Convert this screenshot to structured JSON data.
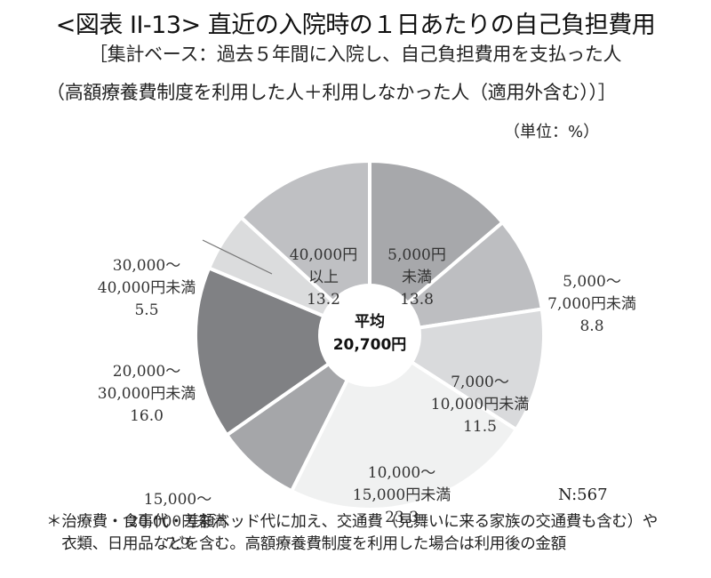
{
  "header": {
    "title": "<図表 II-13> 直近の入院時の１日あたりの自己負担費用",
    "subtitle_line1": "［集計ベース：過去５年間に入院し、自己負担費用を支払った人",
    "subtitle_line2": "（高額療養費制度を利用した人＋利用しなかった人（適用外含む））］",
    "unit": "（単位：%）"
  },
  "center": {
    "line1": "平均",
    "line2": "20,700円"
  },
  "sample": "N:567",
  "footnote": {
    "line1": "＊治療費・食事代・差額ベッド代に加え、交通費（見舞いに来る家族の交通費も含む）や",
    "line2": "　衣類、日用品などを含む。高額療養費制度を利用した場合は利用後の金額"
  },
  "slices": [
    {
      "label_l1": "5,000円",
      "label_l2": "未満",
      "value_text": "13.8",
      "color": "#a7a8ab"
    },
    {
      "label_l1": "5,000～",
      "label_l2": "7,000円未満",
      "value_text": "8.8",
      "color": "#bdbec1"
    },
    {
      "label_l1": "7,000～",
      "label_l2": "10,000円未満",
      "value_text": "11.5",
      "color": "#d9dadc"
    },
    {
      "label_l1": "10,000～",
      "label_l2": "15,000円未満",
      "value_text": "23.3",
      "color": "#f0f1f1"
    },
    {
      "label_l1": "15,000～",
      "label_l2": "20,000円未満",
      "value_text": "7.9",
      "color": "#a5a6a9"
    },
    {
      "label_l1": "20,000～",
      "label_l2": "30,000円未満",
      "value_text": "16.0",
      "color": "#808184"
    },
    {
      "label_l1": "30,000～",
      "label_l2": "40,000円未満",
      "value_text": "5.5",
      "color": "#dbdcdd"
    },
    {
      "label_l1": "40,000円",
      "label_l2": "以上",
      "value_text": "13.2",
      "color": "#bfc0c3"
    }
  ],
  "chart_data": {
    "type": "pie",
    "variant": "donut",
    "title": "<図表 II-13> 直近の入院時の１日あたりの自己負担費用",
    "subtitle": "［集計ベース：過去５年間に入院し、自己負担費用を支払った人（高額療養費制度を利用した人＋利用しなかった人（適用外含む））］",
    "unit": "%",
    "categories": [
      "5,000円未満",
      "5,000～7,000円未満",
      "7,000～10,000円未満",
      "10,000～15,000円未満",
      "15,000～20,000円未満",
      "20,000～30,000円未満",
      "30,000～40,000円未満",
      "40,000円以上"
    ],
    "values": [
      13.8,
      8.8,
      11.5,
      23.3,
      7.9,
      16.0,
      5.5,
      13.2
    ],
    "center_annotation": "平均 20,700円",
    "n": 567,
    "start_angle": "12 o'clock, clockwise"
  }
}
